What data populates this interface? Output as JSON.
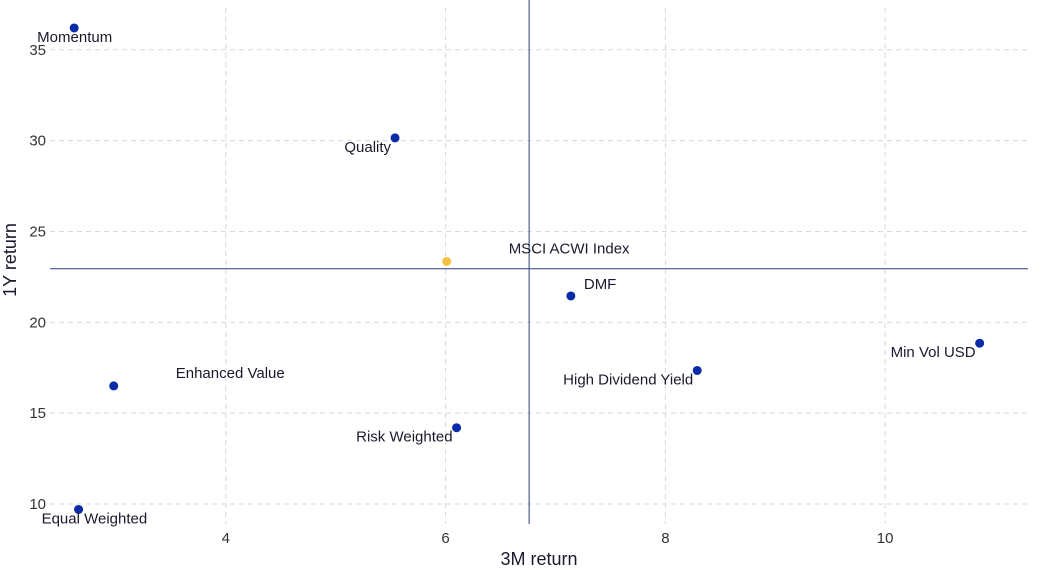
{
  "chart_data": {
    "type": "scatter",
    "xlabel": "3M return",
    "ylabel": "1Y return",
    "xlim": [
      2.4,
      11.3
    ],
    "ylim": [
      8.9,
      37.3
    ],
    "x_ticks": [
      4,
      6,
      8,
      10
    ],
    "y_ticks": [
      10,
      15,
      20,
      25,
      30,
      35
    ],
    "grid": true,
    "reference_lines": {
      "x": 6.76,
      "y": 22.95,
      "color": "#2a3f7a"
    },
    "colors": {
      "point": "#0a2aa8",
      "highlight": "#f5c242"
    },
    "points": [
      {
        "name": "Momentum",
        "x": 2.62,
        "y": 36.2,
        "highlight": false,
        "label_pos": "below-right"
      },
      {
        "name": "Quality",
        "x": 5.54,
        "y": 30.15,
        "highlight": false,
        "label_pos": "below-left"
      },
      {
        "name": "MSCI ACWI Index",
        "x": 6.01,
        "y": 23.35,
        "highlight": true,
        "label_pos": "far-right"
      },
      {
        "name": "DMF",
        "x": 7.14,
        "y": 21.45,
        "highlight": false,
        "label_pos": "above-right"
      },
      {
        "name": "Min Vol USD",
        "x": 10.86,
        "y": 18.85,
        "highlight": false,
        "label_pos": "below-left"
      },
      {
        "name": "High Dividend Yield",
        "x": 8.29,
        "y": 17.35,
        "highlight": false,
        "label_pos": "below-left"
      },
      {
        "name": "Enhanced Value",
        "x": 2.98,
        "y": 16.5,
        "highlight": false,
        "label_pos": "far-right"
      },
      {
        "name": "Risk Weighted",
        "x": 6.1,
        "y": 14.2,
        "highlight": false,
        "label_pos": "below-left"
      },
      {
        "name": "Equal Weighted",
        "x": 2.66,
        "y": 9.7,
        "highlight": false,
        "label_pos": "below-right"
      }
    ]
  }
}
